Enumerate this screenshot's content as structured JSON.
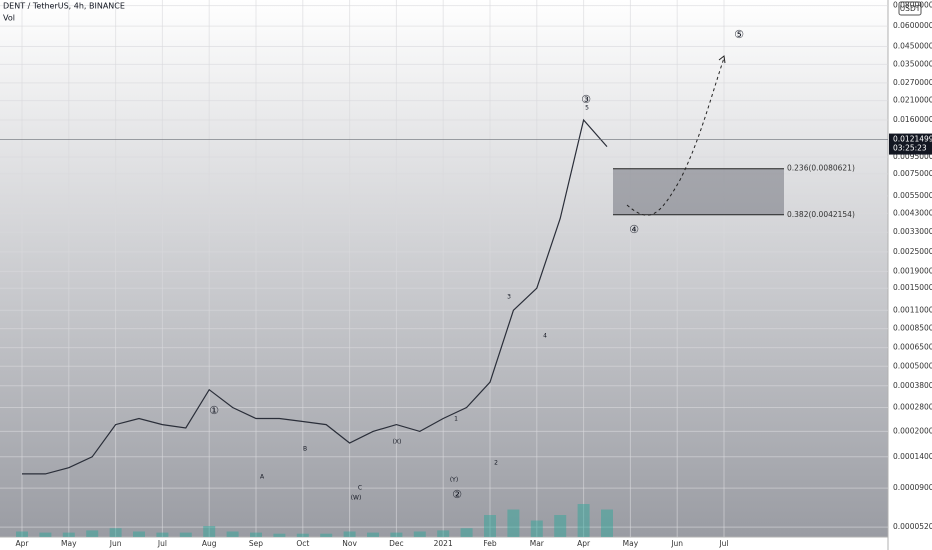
{
  "chart_data": {
    "type": "line",
    "title": "DENT / TetherUS, 4h, BINANCE",
    "indicator": "Vol",
    "currency_badge": "USDT",
    "log_scale": true,
    "grid": true,
    "color": "#2a2e39",
    "volume_color": "#26a69a",
    "categories": [
      "Apr",
      null,
      "May",
      null,
      "Jun",
      null,
      "Jul",
      null,
      "Aug",
      null,
      "Sep",
      null,
      "Oct",
      null,
      "Nov",
      null,
      "Dec",
      null,
      "2021",
      null,
      "Feb",
      null,
      "Mar",
      null,
      "Apr",
      null,
      "May",
      null,
      "Jun",
      null,
      "Jul"
    ],
    "values": [
      0.00011,
      0.00011,
      0.00012,
      0.00014,
      0.00022,
      0.00024,
      0.00022,
      0.00021,
      0.00036,
      0.00028,
      0.00024,
      0.00024,
      0.00023,
      0.00022,
      0.00017,
      0.0002,
      0.00022,
      0.0002,
      0.00024,
      0.00028,
      0.0004,
      0.0011,
      0.0015,
      0.004,
      0.016,
      0.011,
      null,
      null,
      null,
      null,
      null
    ],
    "volume": [
      5,
      4,
      4,
      6,
      8,
      5,
      4,
      4,
      10,
      5,
      4,
      3,
      3,
      3,
      5,
      4,
      4,
      5,
      6,
      8,
      20,
      25,
      15,
      20,
      30,
      25,
      null,
      null,
      null,
      null,
      null
    ],
    "vlim": [
      0,
      100
    ],
    "ylim": [
      4.34e-05,
      0.0866
    ],
    "yticks": [
      {
        "value": 5.2e-05,
        "label": "0.0000520"
      },
      {
        "value": 9e-05,
        "label": "0.0000900"
      },
      {
        "value": 0.00014,
        "label": "0.0001400"
      },
      {
        "value": 0.0002,
        "label": "0.0002000"
      },
      {
        "value": 0.00028,
        "label": "0.0002800"
      },
      {
        "value": 0.00038,
        "label": "0.0003800"
      },
      {
        "value": 0.0005,
        "label": "0.0005000"
      },
      {
        "value": 0.00065,
        "label": "0.0006500"
      },
      {
        "value": 0.00085,
        "label": "0.0008500"
      },
      {
        "value": 0.0011,
        "label": "0.0011000"
      },
      {
        "value": 0.0015,
        "label": "0.0015000"
      },
      {
        "value": 0.0019,
        "label": "0.0019000"
      },
      {
        "value": 0.0025,
        "label": "0.0025000"
      },
      {
        "value": 0.0033,
        "label": "0.0033000"
      },
      {
        "value": 0.0043,
        "label": "0.0043000"
      },
      {
        "value": 0.0055,
        "label": "0.0055000"
      },
      {
        "value": 0.0075,
        "label": "0.0075000"
      },
      {
        "value": 0.0095,
        "label": "0.0095000"
      },
      {
        "value": 0.016,
        "label": "0.0160000"
      },
      {
        "value": 0.021,
        "label": "0.0210000"
      },
      {
        "value": 0.027,
        "label": "0.0270000"
      },
      {
        "value": 0.035,
        "label": "0.0350000"
      },
      {
        "value": 0.045,
        "label": "0.0450000"
      },
      {
        "value": 0.06,
        "label": "0.0600000"
      },
      {
        "value": 0.08,
        "label": "0.0800000"
      }
    ],
    "last_price": 0.0121499,
    "countdown": "03:25:23",
    "fib_levels": [
      {
        "label": "0.236(0.0080621)",
        "price": 0.0080621
      },
      {
        "label": "0.382(0.0042154)",
        "price": 0.0042154
      }
    ],
    "annotations": [
      "①",
      "A",
      "B",
      "C",
      "(W)",
      "(X)",
      "(Y)",
      "②",
      "1",
      "2",
      "3",
      "4",
      "5",
      "③",
      "④",
      "⑤"
    ]
  }
}
